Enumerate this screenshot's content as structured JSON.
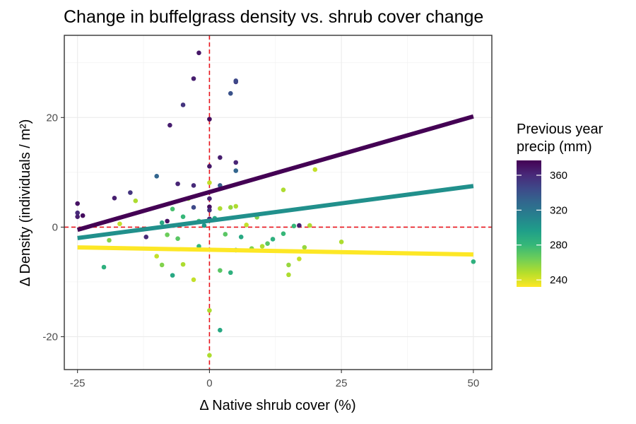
{
  "chart_data": {
    "type": "scatter",
    "title": "Change in buffelgrass density vs. shrub cover change",
    "xlabel": "Δ Native shrub cover (%)",
    "ylabel": "Δ Density (individuals / m²)",
    "xlim": [
      -27.5,
      53.5
    ],
    "ylim": [
      -26,
      35
    ],
    "x_ticks": [
      -25,
      0,
      25,
      50
    ],
    "y_ticks": [
      -20,
      0,
      20
    ],
    "x_tick_labels": [
      "-25",
      "0",
      "25",
      "50"
    ],
    "y_tick_labels": [
      "-20",
      "0",
      "20"
    ],
    "grid": true,
    "reference_lines": [
      {
        "axis": "x",
        "value": 0,
        "color": "#e8141c",
        "style": "dashed"
      },
      {
        "axis": "y",
        "value": 0,
        "color": "#e8141c",
        "style": "dashed"
      }
    ],
    "legend": {
      "title_lines": [
        "Previous year",
        "precip (mm)"
      ],
      "placement": "right",
      "type": "colorbar",
      "min": 232,
      "max": 377,
      "ticks": [
        240,
        280,
        320,
        360
      ],
      "tick_labels": [
        "240",
        "280",
        "320",
        "360"
      ],
      "colormap": [
        "#fde725",
        "#b5de2b",
        "#6ece58",
        "#35b779",
        "#1f9e89",
        "#26828e",
        "#31688e",
        "#3e4989",
        "#482878",
        "#440154"
      ]
    },
    "fit_lines": [
      {
        "precip": 375,
        "x": [
          -25,
          50
        ],
        "y": [
          -0.5,
          20.2
        ],
        "color": "#440154"
      },
      {
        "precip": 310,
        "x": [
          -25,
          50
        ],
        "y": [
          -2.0,
          7.5
        ],
        "color": "#21908c"
      },
      {
        "precip": 240,
        "x": [
          -25,
          50
        ],
        "y": [
          -3.7,
          -5.0
        ],
        "color": "#fde725"
      }
    ],
    "points": [
      {
        "x": -25,
        "y": 4.3,
        "c": 370
      },
      {
        "x": -25,
        "y": 2.6,
        "c": 360
      },
      {
        "x": -25,
        "y": 1.9,
        "c": 365
      },
      {
        "x": -24,
        "y": 2.1,
        "c": 372
      },
      {
        "x": -18,
        "y": 5.3,
        "c": 365
      },
      {
        "x": -15,
        "y": 6.3,
        "c": 355
      },
      {
        "x": -10,
        "y": 9.3,
        "c": 330
      },
      {
        "x": -7.5,
        "y": 18.6,
        "c": 365
      },
      {
        "x": -5,
        "y": 22.3,
        "c": 355
      },
      {
        "x": -3,
        "y": 27.1,
        "c": 365
      },
      {
        "x": -2,
        "y": 31.8,
        "c": 368
      },
      {
        "x": 0,
        "y": 19.7,
        "c": 372
      },
      {
        "x": 4,
        "y": 24.4,
        "c": 340
      },
      {
        "x": 5,
        "y": 26.5,
        "c": 350
      },
      {
        "x": 5,
        "y": 26.7,
        "c": 345
      },
      {
        "x": 5,
        "y": 11.8,
        "c": 362
      },
      {
        "x": 5,
        "y": 10.3,
        "c": 330
      },
      {
        "x": 2,
        "y": 12.7,
        "c": 365
      },
      {
        "x": 2,
        "y": 7.6,
        "c": 335
      },
      {
        "x": 0,
        "y": 11.1,
        "c": 368
      },
      {
        "x": 0,
        "y": 5.2,
        "c": 362
      },
      {
        "x": 0,
        "y": 3.7,
        "c": 372
      },
      {
        "x": 0,
        "y": 3.1,
        "c": 358
      },
      {
        "x": 0,
        "y": 1.5,
        "c": 362
      },
      {
        "x": -3,
        "y": 7.6,
        "c": 360
      },
      {
        "x": -6,
        "y": 7.9,
        "c": 362
      },
      {
        "x": -3,
        "y": 3.6,
        "c": 345
      },
      {
        "x": -8,
        "y": 1.1,
        "c": 370
      },
      {
        "x": -12,
        "y": -1.8,
        "c": 360
      },
      {
        "x": 17,
        "y": 0.3,
        "c": 365
      },
      {
        "x": -17,
        "y": 0.6,
        "c": 245
      },
      {
        "x": -19,
        "y": -2.4,
        "c": 260
      },
      {
        "x": -20,
        "y": -7.3,
        "c": 285
      },
      {
        "x": -14,
        "y": 4.8,
        "c": 250
      },
      {
        "x": -10,
        "y": -5.3,
        "c": 245
      },
      {
        "x": -9,
        "y": -6.9,
        "c": 260
      },
      {
        "x": -7,
        "y": -8.8,
        "c": 290
      },
      {
        "x": -5,
        "y": -6.8,
        "c": 250
      },
      {
        "x": -3,
        "y": -9.6,
        "c": 245
      },
      {
        "x": -2,
        "y": -3.5,
        "c": 280
      },
      {
        "x": 0,
        "y": -15.2,
        "c": 250
      },
      {
        "x": 0,
        "y": -23.4,
        "c": 250
      },
      {
        "x": 2,
        "y": -18.8,
        "c": 290
      },
      {
        "x": 2,
        "y": -7.9,
        "c": 270
      },
      {
        "x": 4,
        "y": -8.3,
        "c": 285
      },
      {
        "x": 0,
        "y": 8.1,
        "c": 245
      },
      {
        "x": -4,
        "y": 5.2,
        "c": 255
      },
      {
        "x": -7,
        "y": 3.3,
        "c": 275
      },
      {
        "x": -8,
        "y": -1.4,
        "c": 265
      },
      {
        "x": -5,
        "y": 1.9,
        "c": 280
      },
      {
        "x": -2,
        "y": 1.1,
        "c": 275
      },
      {
        "x": 1,
        "y": 1.6,
        "c": 290
      },
      {
        "x": 2,
        "y": 3.4,
        "c": 250
      },
      {
        "x": 4,
        "y": 3.6,
        "c": 255
      },
      {
        "x": 5,
        "y": 3.8,
        "c": 250
      },
      {
        "x": 7,
        "y": 0.4,
        "c": 245
      },
      {
        "x": 9,
        "y": 1.8,
        "c": 260
      },
      {
        "x": 10,
        "y": -3.5,
        "c": 250
      },
      {
        "x": 6,
        "y": -1.8,
        "c": 290
      },
      {
        "x": 5,
        "y": -4.2,
        "c": 300
      },
      {
        "x": 3,
        "y": -1.3,
        "c": 270
      },
      {
        "x": 14,
        "y": 6.8,
        "c": 250
      },
      {
        "x": 14,
        "y": -1.2,
        "c": 280
      },
      {
        "x": 15,
        "y": -8.7,
        "c": 250
      },
      {
        "x": 15,
        "y": -6.9,
        "c": 255
      },
      {
        "x": 17,
        "y": -5.8,
        "c": 245
      },
      {
        "x": 18,
        "y": -3.7,
        "c": 255
      },
      {
        "x": 20,
        "y": 10.5,
        "c": 245
      },
      {
        "x": 19,
        "y": 0.3,
        "c": 250
      },
      {
        "x": 25,
        "y": -2.7,
        "c": 250
      },
      {
        "x": 50,
        "y": -6.3,
        "c": 285
      },
      {
        "x": 11,
        "y": -3.0,
        "c": 270
      },
      {
        "x": 16,
        "y": 0.2,
        "c": 280
      },
      {
        "x": 12,
        "y": -2.2,
        "c": 285
      },
      {
        "x": 8,
        "y": -3.9,
        "c": 260
      },
      {
        "x": -1,
        "y": 0.3,
        "c": 300
      },
      {
        "x": -9,
        "y": 0.8,
        "c": 290
      },
      {
        "x": -6,
        "y": -2.1,
        "c": 270
      }
    ]
  }
}
